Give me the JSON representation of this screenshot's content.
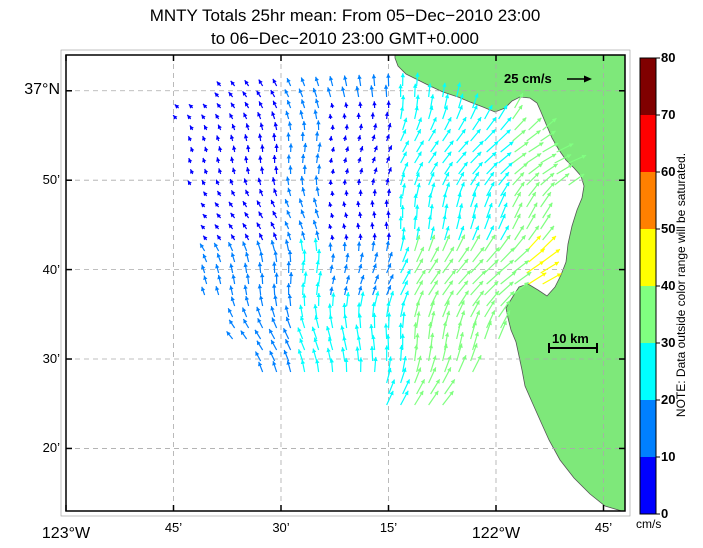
{
  "title_line1": "MNTY Totals 25hr mean: From 05−Dec−2010 23:00",
  "title_line2": "to 06−Dec−2010 23:00 GMT+0.000",
  "map": {
    "lon_range": [
      -123.0,
      -121.7
    ],
    "lat_range": [
      36.2167,
      37.0667
    ],
    "lat_ticks": [
      {
        "label": "37°N",
        "value": 37.0
      },
      {
        "label": "50’",
        "value": 36.8333
      },
      {
        "label": "40’",
        "value": 36.6667
      },
      {
        "label": "30’",
        "value": 36.5
      },
      {
        "label": "20’",
        "value": 36.3333
      }
    ],
    "lon_ticks": [
      {
        "label": "123°W",
        "value": -123.0
      },
      {
        "label": "45’",
        "value": -122.75
      },
      {
        "label": "30’",
        "value": -122.5
      },
      {
        "label": "15’",
        "value": -122.25
      },
      {
        "label": "122°W",
        "value": -122.0
      },
      {
        "label": "45’",
        "value": -121.75
      }
    ],
    "grid": true,
    "land_color": "#7ee87a",
    "reference_vector_label": "25 cm/s",
    "scale_bar_label": "10 km"
  },
  "colorbar": {
    "ticks": [
      "80",
      "70",
      "60",
      "50",
      "40",
      "30",
      "20",
      "10",
      "0"
    ],
    "units": "cm/s",
    "colors": [
      "#0000ff",
      "#0080ff",
      "#00ffff",
      "#80ff80",
      "#ffff00",
      "#ff8000",
      "#ff0000",
      "#800000"
    ],
    "note": "NOTE: Data outside color range will be saturated."
  }
}
